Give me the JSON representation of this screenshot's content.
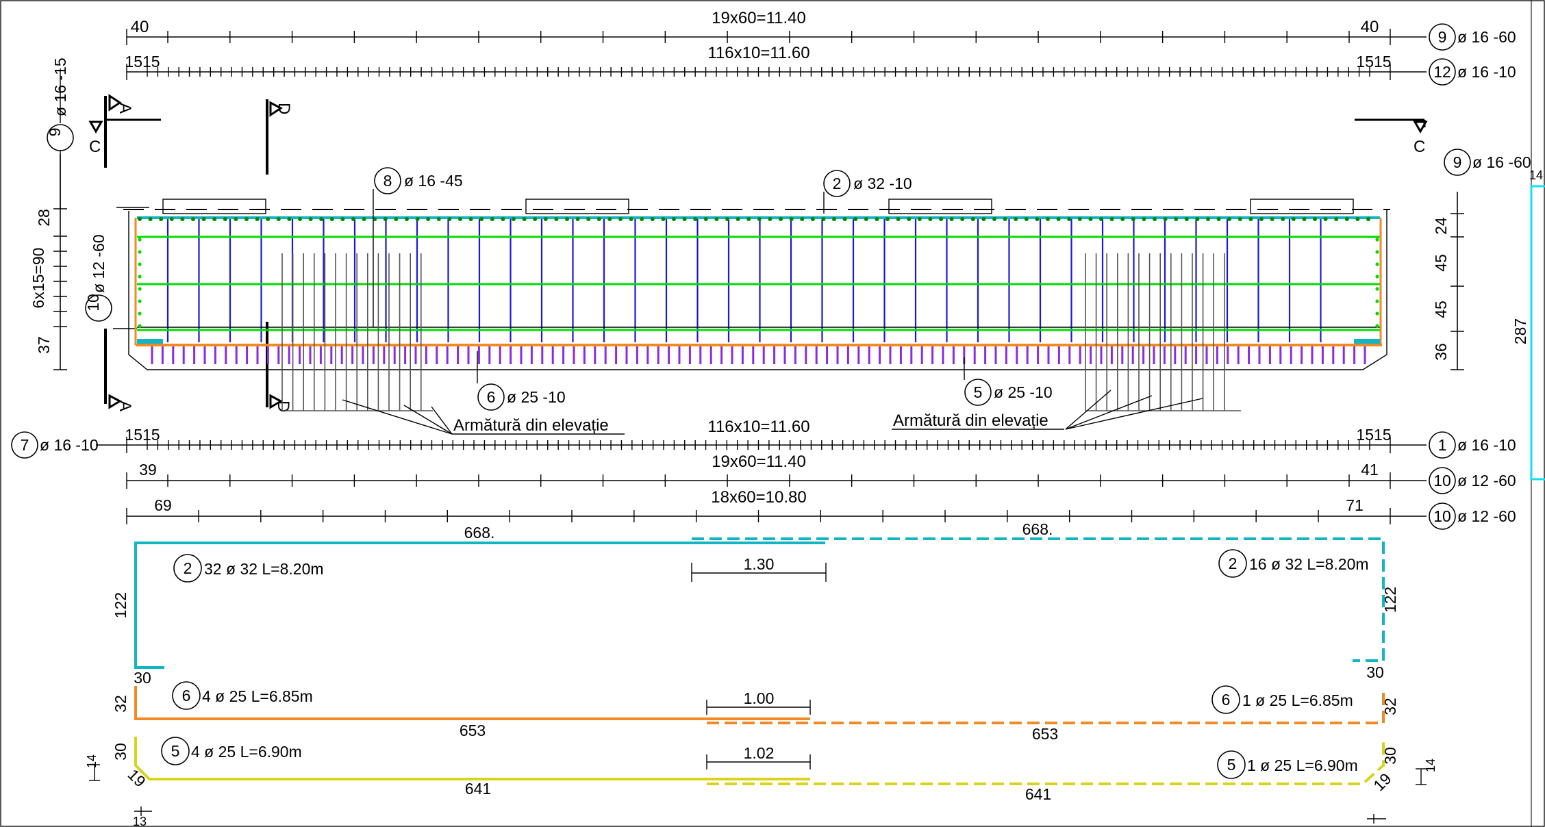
{
  "colors": {
    "stirrup": "#1a1ad6",
    "green_bar": "#00dd00",
    "cyan_bar": "#12b5c2",
    "orange_bar": "#f08a24",
    "yellow_bar": "#d8d41c",
    "purple_bar": "#8a2be2"
  },
  "top_dims": {
    "row1": {
      "left": "40",
      "center": "19x60=11.40",
      "right": "40",
      "mark": "9",
      "spec": "ø 16 -60"
    },
    "row2": {
      "left": "1515",
      "center": "116x10=11.60",
      "right": "1515",
      "mark": "12",
      "spec": "ø 16 -10"
    }
  },
  "left_dims": {
    "mark": "9",
    "spec": "ø 16 -15",
    "top": "28",
    "middle": "6x15=90",
    "bottom": "37",
    "bar_mark": "10",
    "bar_spec": "ø 12 -60"
  },
  "right_dims": {
    "mark": "9",
    "spec": "ø 16 -60",
    "d1": "24",
    "d2": "45",
    "d3": "45",
    "d4": "36",
    "height": "287",
    "corner": "14"
  },
  "sections": {
    "a": "A",
    "c": "C",
    "d": "D"
  },
  "callouts": {
    "stirrup": {
      "mark": "8",
      "spec": "ø 16 -45"
    },
    "top_bar": {
      "mark": "2",
      "spec": "ø 32 -10"
    },
    "bot_left": {
      "mark": "6",
      "spec": "ø 25 -10"
    },
    "bot_right": {
      "mark": "5",
      "spec": "ø 25 -10"
    },
    "elevation_note": "Armătură din elevație"
  },
  "bottom_dims": {
    "row1": {
      "mark_left": "7",
      "spec_left": "ø 16 -10",
      "left": "1515",
      "center": "116x10=11.60",
      "right": "1515",
      "mark": "1",
      "spec": "ø 16 -10"
    },
    "row2": {
      "left": "39",
      "center": "19x60=11.40",
      "right": "41",
      "mark": "10",
      "spec": "ø 12 -60"
    },
    "row3": {
      "left": "69",
      "center": "18x60=10.80",
      "right": "71",
      "mark": "10",
      "spec": "ø 12 -60"
    }
  },
  "bar_schedule": {
    "bar2": {
      "len_left": "668.",
      "len_right": "668.",
      "lap": "1.30",
      "hook": "122",
      "end": "30",
      "mark": "2",
      "left_label": "32 ø 32 L=8.20m",
      "right_label": "16 ø 32 L=8.20m"
    },
    "bar6": {
      "hook": "32",
      "lap": "1.00",
      "len_left": "653",
      "len_right": "653",
      "mark": "6",
      "left_label": "4 ø 25 L=6.85m",
      "right_label": "1 ø 25 L=6.85m"
    },
    "bar5": {
      "hook": "30",
      "bend": "19",
      "lap": "1.02",
      "len_left": "641",
      "len_right": "641",
      "mark": "5",
      "left_label": "4 ø 25 L=6.90m",
      "right_label": "1 ø 25 L=6.90m",
      "tick_a": "14",
      "tick_b": "13"
    }
  }
}
